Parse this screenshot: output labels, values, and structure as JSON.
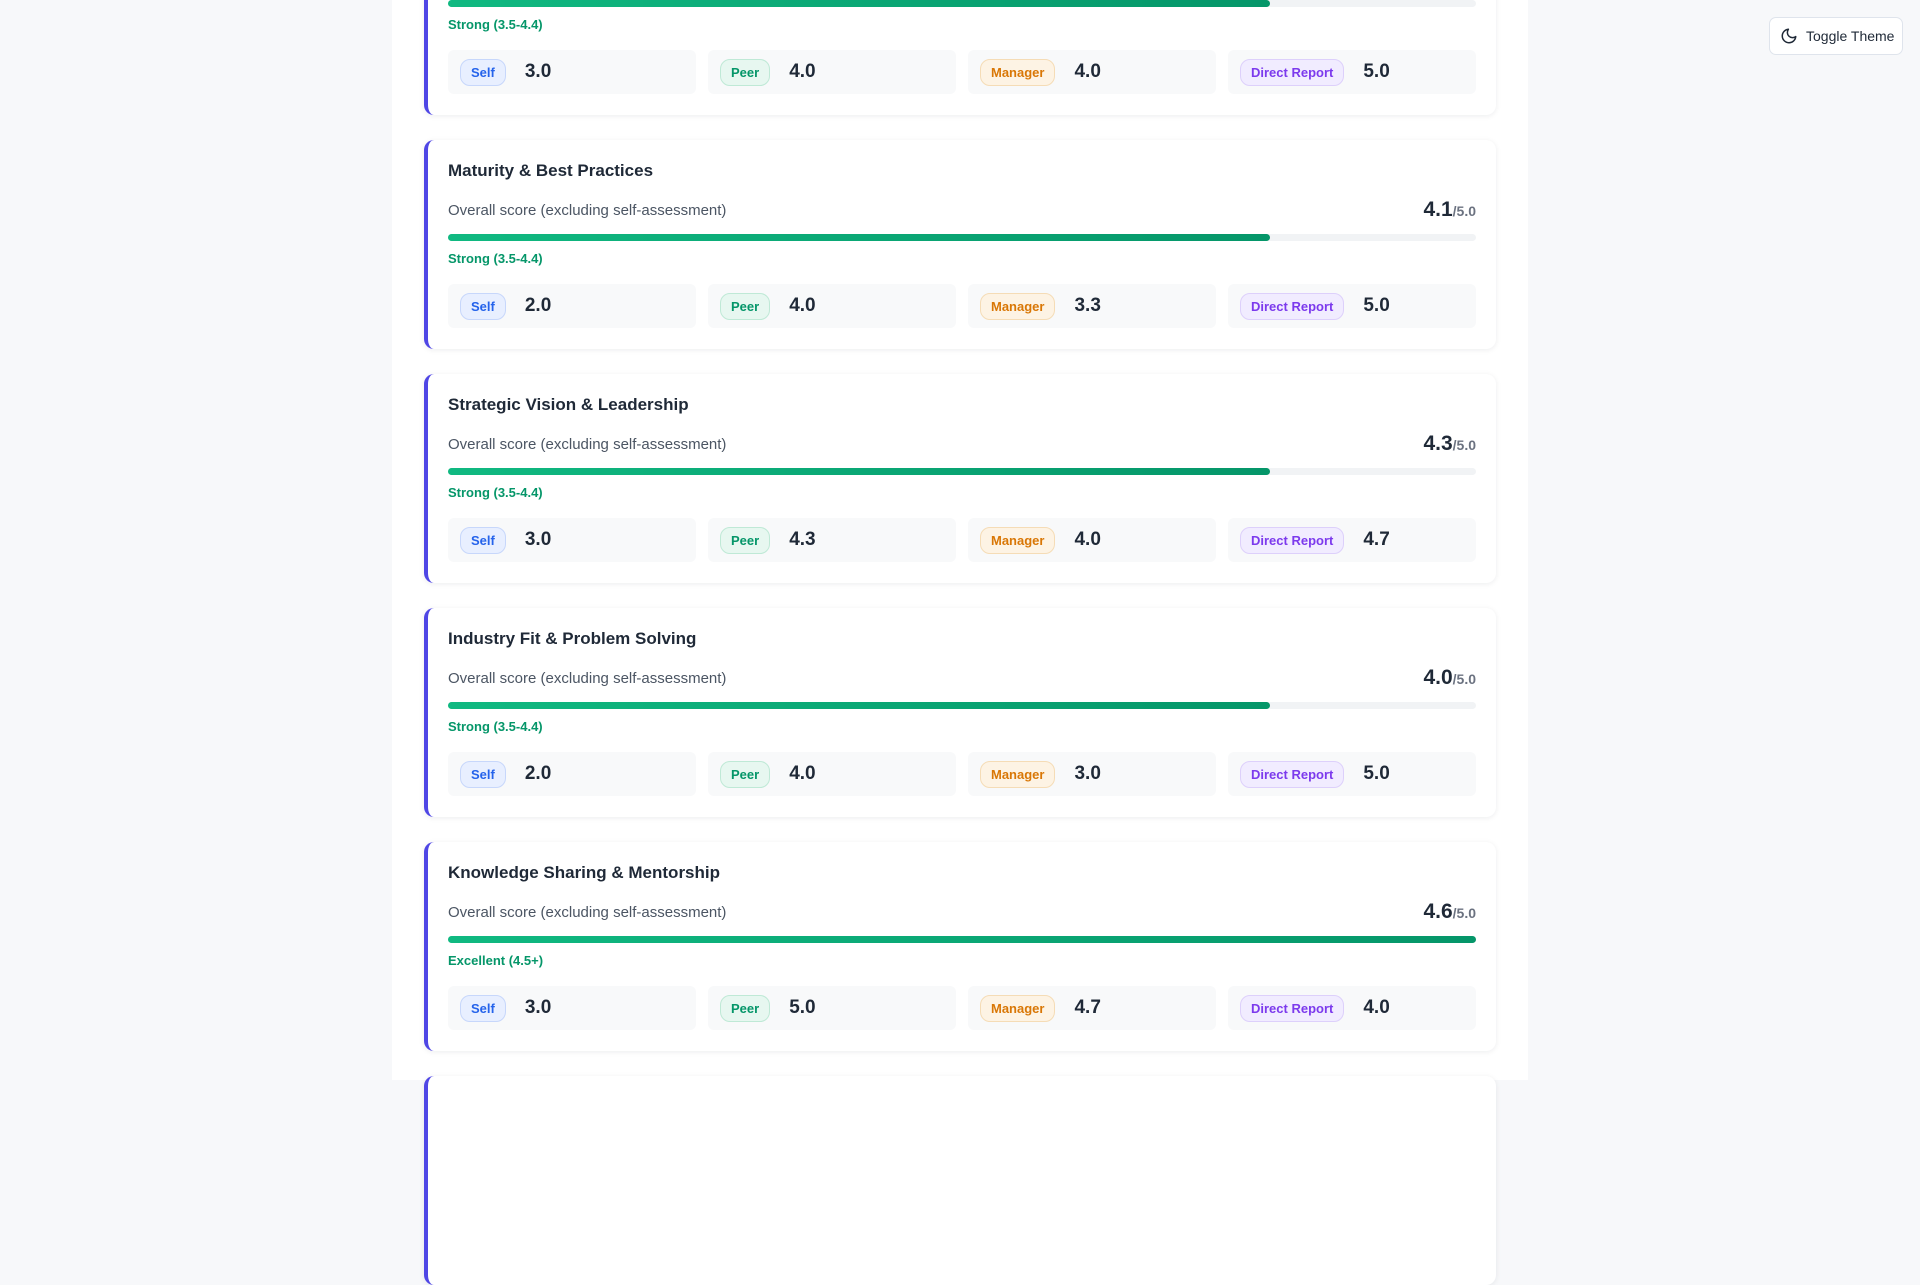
{
  "toggle_theme": {
    "label": "Toggle Theme",
    "icon": "moon-icon"
  },
  "overall_label": "Overall score (excluding self-assessment)",
  "score_max": "/5.0",
  "rater_labels": {
    "self": "Self",
    "peer": "Peer",
    "manager": "Manager",
    "direct_report": "Direct Report"
  },
  "cards": [
    {
      "title": "",
      "score": "",
      "tier": "Strong (3.5-4.4)",
      "fill_percent": 80,
      "self": "3.0",
      "peer": "4.0",
      "manager": "4.0",
      "direct_report": "5.0"
    },
    {
      "title": "Maturity & Best Practices",
      "score": "4.1",
      "tier": "Strong (3.5-4.4)",
      "fill_percent": 80,
      "self": "2.0",
      "peer": "4.0",
      "manager": "3.3",
      "direct_report": "5.0"
    },
    {
      "title": "Strategic Vision & Leadership",
      "score": "4.3",
      "tier": "Strong (3.5-4.4)",
      "fill_percent": 80,
      "self": "3.0",
      "peer": "4.3",
      "manager": "4.0",
      "direct_report": "4.7"
    },
    {
      "title": "Industry Fit & Problem Solving",
      "score": "4.0",
      "tier": "Strong (3.5-4.4)",
      "fill_percent": 80,
      "self": "2.0",
      "peer": "4.0",
      "manager": "3.0",
      "direct_report": "5.0"
    },
    {
      "title": "Knowledge Sharing & Mentorship",
      "score": "4.6",
      "tier": "Excellent (4.5+)",
      "fill_percent": 100,
      "self": "3.0",
      "peer": "5.0",
      "manager": "4.7",
      "direct_report": "4.0"
    }
  ]
}
